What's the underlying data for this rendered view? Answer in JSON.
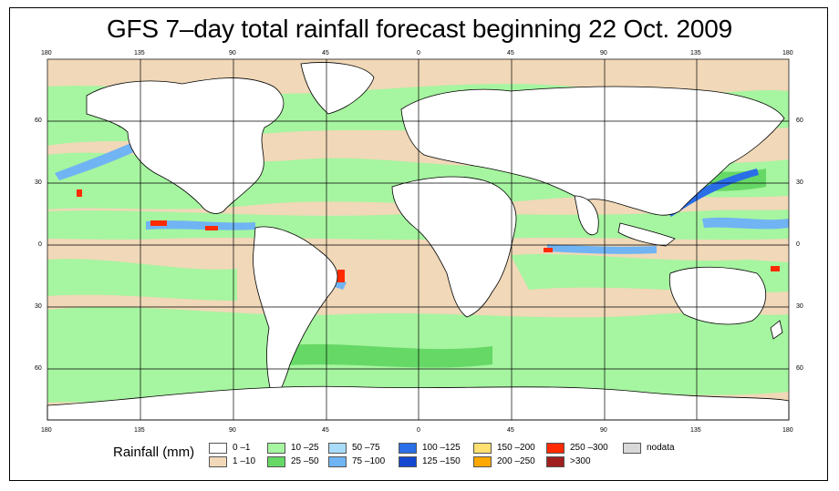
{
  "title": "GFS 7–day total rainfall forecast beginning 22 Oct. 2009",
  "top_ticks": [
    "180",
    "135",
    "90",
    "45",
    "0",
    "45",
    "90",
    "135",
    "180"
  ],
  "bottom_ticks": [
    "180",
    "135",
    "90",
    "45",
    "0",
    "45",
    "90",
    "135",
    "180"
  ],
  "left_ticks": [
    "60",
    "30",
    "0",
    "30",
    "60"
  ],
  "right_ticks": [
    "60",
    "30",
    "0",
    "30",
    "60"
  ],
  "legend": {
    "label": "Rainfall (mm)",
    "items": [
      {
        "label": "0 –1",
        "color": "#ffffff"
      },
      {
        "label": "1 –10",
        "color": "#f0d8b8"
      },
      {
        "label": "10 –25",
        "color": "#a6f5a0"
      },
      {
        "label": "25 –50",
        "color": "#66d866"
      },
      {
        "label": "50 –75",
        "color": "#a8dcf8"
      },
      {
        "label": "75 –100",
        "color": "#70b4f4"
      },
      {
        "label": "100 –125",
        "color": "#2a6ee8"
      },
      {
        "label": "125 –150",
        "color": "#1448d0"
      },
      {
        "label": "150 –200",
        "color": "#ffe070"
      },
      {
        "label": "200 –250",
        "color": "#ffa800"
      },
      {
        "label": "250 –300",
        "color": "#ff2a00"
      },
      {
        ">300": "",
        "label": ">300",
        "color": "#a02020"
      },
      {
        "label": "nodata",
        "color": "#d8d8d8"
      }
    ]
  }
}
